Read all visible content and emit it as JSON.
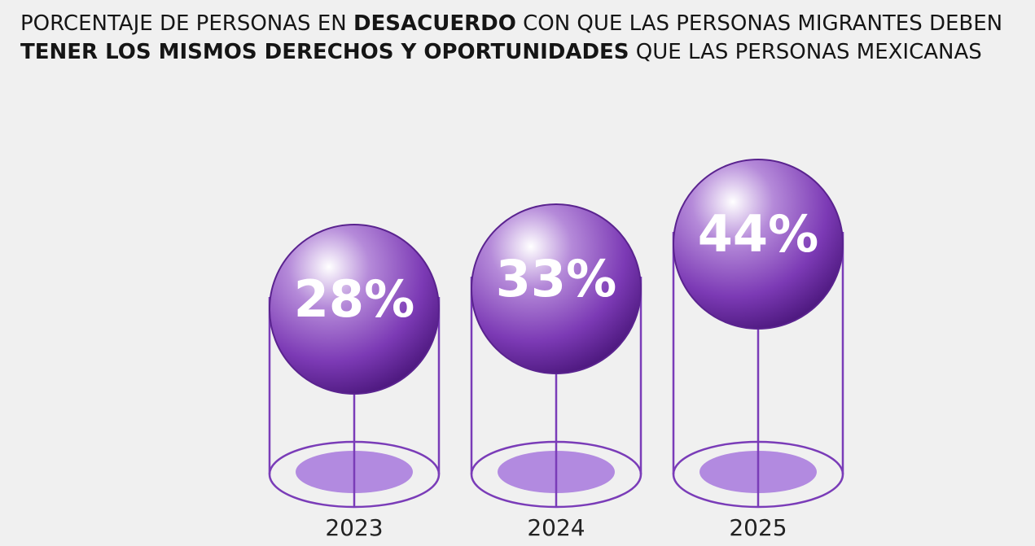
{
  "chart_data": {
    "type": "sphere-bar",
    "title": [
      {
        "text": "PORCENTAJE DE PERSONAS EN ",
        "bold": false
      },
      {
        "text": "DESACUERDO",
        "bold": true
      },
      {
        "text": " CON QUE LAS PERSONAS MIGRANTES DEBEN ",
        "bold": false
      },
      {
        "text": "TENER LOS MISMOS DERECHOS Y OPORTUNIDADES",
        "bold": true
      },
      {
        "text": " QUE LAS PERSONAS MEXICANAS",
        "bold": false
      }
    ],
    "categories": [
      "2023",
      "2024",
      "2025"
    ],
    "values": [
      28,
      33,
      44
    ],
    "value_labels": [
      "28%",
      "33%",
      "44%"
    ],
    "color": "#8a4cc2"
  }
}
